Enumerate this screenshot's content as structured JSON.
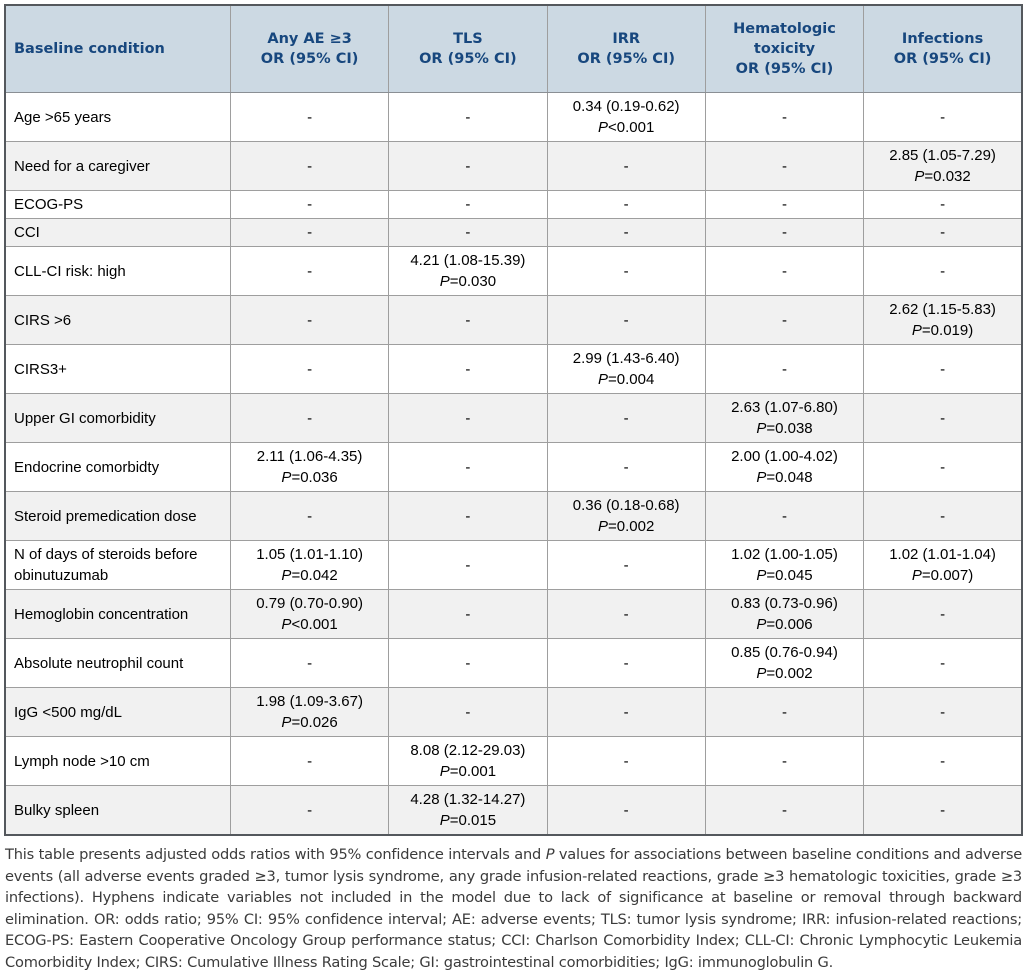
{
  "table": {
    "empty_marker": "-",
    "p_label": "P",
    "columns": [
      {
        "label": "Baseline condition"
      },
      {
        "label": "Any AE ≥3\nOR (95% CI)"
      },
      {
        "label": "TLS\nOR (95% CI)"
      },
      {
        "label": "IRR\nOR (95% CI)"
      },
      {
        "label": "Hematologic\ntoxicity\nOR (95% CI)"
      },
      {
        "label": "Infections\nOR (95% CI)"
      }
    ],
    "rows": [
      {
        "condition": "Age >65 years",
        "cells": [
          "-",
          "-",
          {
            "or": "0.34 (0.19-0.62)",
            "p": "<0.001"
          },
          "-",
          "-"
        ]
      },
      {
        "condition": "Need for a caregiver",
        "cells": [
          "-",
          "-",
          "-",
          "-",
          {
            "or": "2.85 (1.05-7.29)",
            "p": "=0.032"
          }
        ]
      },
      {
        "condition": "ECOG-PS",
        "cells": [
          "-",
          "-",
          "-",
          "-",
          "-"
        ]
      },
      {
        "condition": "CCI",
        "cells": [
          "-",
          "-",
          "-",
          "-",
          "-"
        ]
      },
      {
        "condition": "CLL-CI risk: high",
        "cells": [
          "-",
          {
            "or": "4.21 (1.08-15.39)",
            "p": "=0.030"
          },
          "-",
          "-",
          "-"
        ]
      },
      {
        "condition": "CIRS >6",
        "cells": [
          "-",
          "-",
          "-",
          "-",
          {
            "or": "2.62 (1.15-5.83)",
            "p": "=0.019)"
          }
        ]
      },
      {
        "condition": "CIRS3+",
        "cells": [
          "-",
          "-",
          {
            "or": "2.99 (1.43-6.40)",
            "p": "=0.004"
          },
          "-",
          "-"
        ]
      },
      {
        "condition": "Upper GI comorbidity",
        "cells": [
          "-",
          "-",
          "-",
          {
            "or": "2.63 (1.07-6.80)",
            "p": "=0.038"
          },
          "-"
        ]
      },
      {
        "condition": "Endocrine comorbidty",
        "cells": [
          {
            "or": "2.11 (1.06-4.35)",
            "p": "=0.036"
          },
          "-",
          "-",
          {
            "or": "2.00 (1.00-4.02)",
            "p": "=0.048"
          },
          "-"
        ]
      },
      {
        "condition": "Steroid premedication dose",
        "cells": [
          "-",
          "-",
          {
            "or": "0.36 (0.18-0.68)",
            "p": "=0.002"
          },
          "-",
          "-"
        ]
      },
      {
        "condition": "N of days of steroids before obinutuzumab",
        "cells": [
          {
            "or": "1.05 (1.01-1.10)",
            "p": "=0.042"
          },
          "-",
          "-",
          {
            "or": "1.02 (1.00-1.05)",
            "p": "=0.045"
          },
          {
            "or": "1.02 (1.01-1.04)",
            "p": "=0.007)"
          }
        ]
      },
      {
        "condition": "Hemoglobin concentration",
        "cells": [
          {
            "or": "0.79 (0.70-0.90)",
            "p": "<0.001"
          },
          "-",
          "-",
          {
            "or": "0.83 (0.73-0.96)",
            "p": "=0.006"
          },
          "-"
        ]
      },
      {
        "condition": "Absolute neutrophil count",
        "cells": [
          "-",
          "-",
          "-",
          {
            "or": "0.85 (0.76-0.94)",
            "p": "=0.002"
          },
          "-"
        ]
      },
      {
        "condition": "IgG <500 mg/dL",
        "cells": [
          {
            "or": "1.98 (1.09-3.67)",
            "p": "=0.026"
          },
          "-",
          "-",
          "-",
          "-"
        ]
      },
      {
        "condition": "Lymph node >10 cm",
        "cells": [
          "-",
          {
            "or": "8.08 (2.12-29.03)",
            "p": "=0.001"
          },
          "-",
          "-",
          "-"
        ]
      },
      {
        "condition": "Bulky spleen",
        "cells": [
          "-",
          {
            "or": "4.28 (1.32-14.27)",
            "p": "=0.015"
          },
          "-",
          "-",
          "-"
        ]
      }
    ]
  },
  "footer": {
    "pre": "This table presents adjusted odds ratios with 95% confidence intervals and ",
    "italic": "P",
    "post": " values for associations between baseline conditions and adverse events (all adverse events graded ≥3, tumor lysis syndrome, any grade infusion-related reactions, grade ≥3 hematologic toxicities, grade ≥3 infections). Hyphens indicate variables not included in the model due to lack of significance at baseline or removal through backward elimination. OR: odds ratio; 95% CI: 95% confidence interval; AE: adverse events; TLS: tumor lysis syndrome; IRR: infusion-related reactions; ECOG-PS: Eastern Cooperative Oncology Group performance status; CCI: Charlson Comorbidity Index; CLL-CI: Chronic Lymphocytic Leukemia Comorbidity Index; CIRS: Cumulative Illness Rating Scale; GI: gastrointestinal comorbidities; IgG: immunoglobulin G."
  },
  "colors": {
    "header_bg": "#ccd9e3",
    "header_text": "#17477e",
    "alt_row_bg": "#f1f1f1",
    "outer_border": "#54585d",
    "inner_border": "#9e9e9e",
    "footer_text": "#3b3b3b"
  }
}
